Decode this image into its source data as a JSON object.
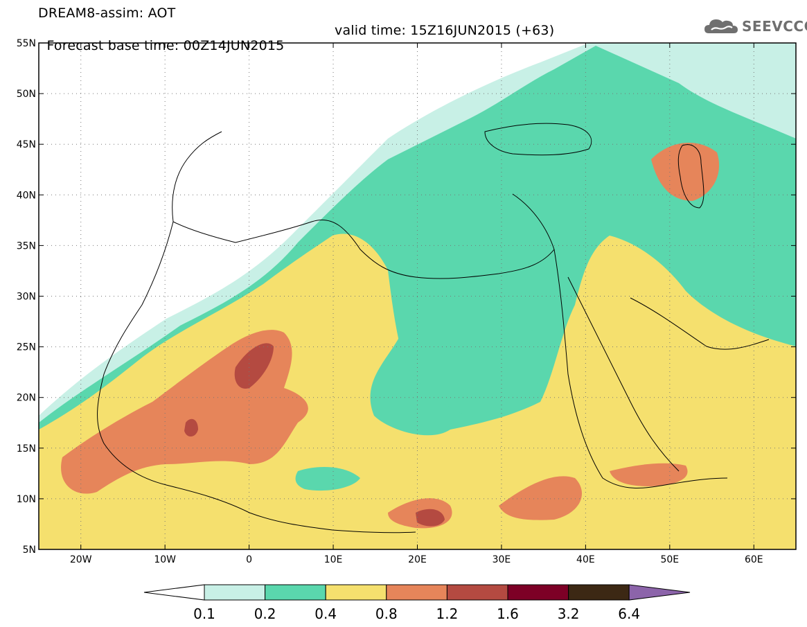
{
  "header": {
    "line1": "DREAM8-assim: AOT",
    "base_time": "Forecast base time: 00Z14JUN2015",
    "valid_time": "valid time: 15Z16JUN2015 (+63)"
  },
  "logo": {
    "text": "SEEVCCC",
    "icon": "cloud-icon"
  },
  "map": {
    "lat_labels": [
      "55N",
      "50N",
      "45N",
      "40N",
      "35N",
      "30N",
      "25N",
      "20N",
      "15N",
      "10N",
      "5N"
    ],
    "lon_labels": [
      "20W",
      "10W",
      "0",
      "10E",
      "20E",
      "30E",
      "40E",
      "50E",
      "60E"
    ],
    "lat_range": [
      5,
      55
    ],
    "lon_range": [
      -25,
      65
    ],
    "grid": "dotted"
  },
  "colorbar": {
    "labels": [
      "0.1",
      "0.2",
      "0.4",
      "0.8",
      "1.2",
      "1.6",
      "3.2",
      "6.4"
    ],
    "colors": [
      "#ffffff",
      "#c8f0e6",
      "#5ad7ad",
      "#f5e06e",
      "#e6855a",
      "#b44a41",
      "#7d0026",
      "#3c2814",
      "#8c64aa"
    ]
  }
}
